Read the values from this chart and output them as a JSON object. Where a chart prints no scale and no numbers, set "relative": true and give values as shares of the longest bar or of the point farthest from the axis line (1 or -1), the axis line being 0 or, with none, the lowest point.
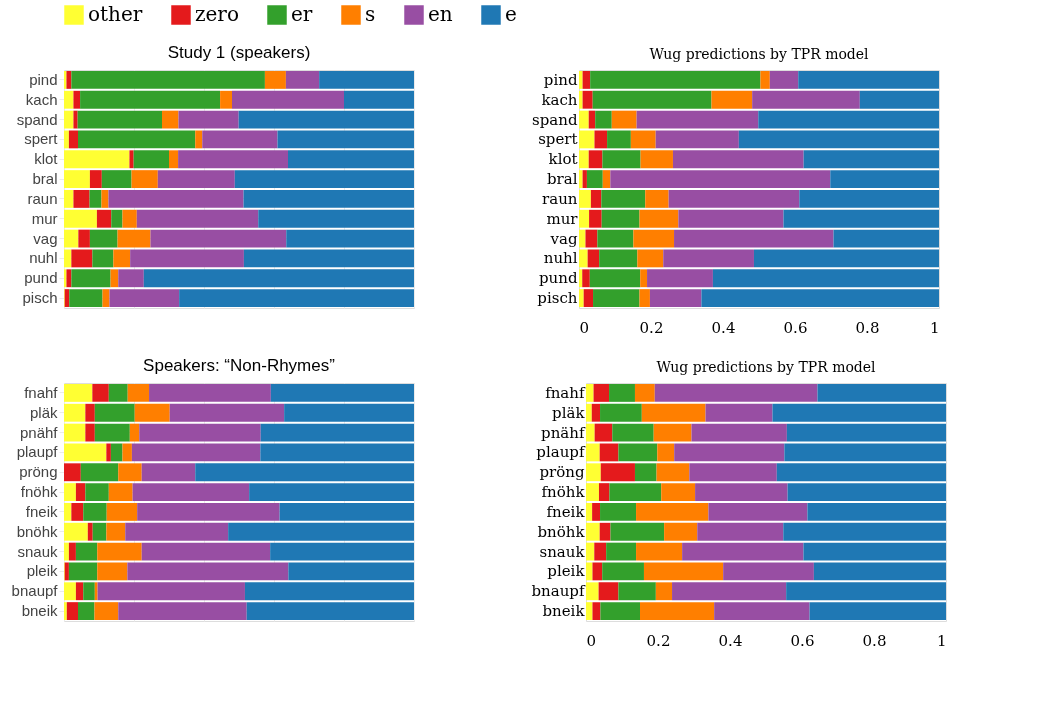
{
  "chart_data": [
    {
      "type": "bar",
      "orientation": "horizontal",
      "stacked": true,
      "relative": true,
      "grid": true,
      "legend": "top",
      "title": "Study 1 (speakers)",
      "categories": [
        "pind",
        "kach",
        "spand",
        "spert",
        "klot",
        "bral",
        "raun",
        "mur",
        "vag",
        "nuhl",
        "pund",
        "pisch"
      ],
      "series": [
        {
          "name": "other",
          "color": "#ffff33",
          "values": [
            0.007,
            0.027,
            0.027,
            0.014,
            0.187,
            0.074,
            0.027,
            0.094,
            0.041,
            0.021,
            0.007,
            0.002
          ]
        },
        {
          "name": "zero",
          "color": "#e41a1c",
          "values": [
            0.014,
            0.019,
            0.012,
            0.026,
            0.012,
            0.034,
            0.046,
            0.041,
            0.033,
            0.06,
            0.014,
            0.013
          ]
        },
        {
          "name": "er",
          "color": "#33a02c",
          "values": [
            0.553,
            0.4,
            0.241,
            0.335,
            0.101,
            0.085,
            0.034,
            0.032,
            0.079,
            0.06,
            0.112,
            0.095
          ]
        },
        {
          "name": "s",
          "color": "#ff7f00",
          "values": [
            0.06,
            0.034,
            0.047,
            0.02,
            0.026,
            0.075,
            0.02,
            0.041,
            0.094,
            0.048,
            0.022,
            0.02
          ]
        },
        {
          "name": "en",
          "color": "#984ea3",
          "values": [
            0.095,
            0.32,
            0.172,
            0.215,
            0.314,
            0.22,
            0.386,
            0.347,
            0.388,
            0.325,
            0.073,
            0.199
          ]
        },
        {
          "name": "e",
          "color": "#1f78b4",
          "values": [
            0.271,
            0.2,
            0.501,
            0.39,
            0.36,
            0.512,
            0.487,
            0.445,
            0.365,
            0.486,
            0.772,
            0.671
          ]
        }
      ]
    },
    {
      "type": "bar",
      "orientation": "horizontal",
      "stacked": true,
      "title": "Wug predictions by TPR model",
      "xlim": [
        0,
        1
      ],
      "xticks": [
        0,
        0.2,
        0.4,
        0.6,
        0.8,
        1
      ],
      "categories": [
        "pind",
        "kach",
        "spand",
        "spert",
        "klot",
        "bral",
        "raun",
        "mur",
        "vag",
        "nuhl",
        "pund",
        "pisch"
      ],
      "series": [
        {
          "color": "#ffff33",
          "values": [
            0.01,
            0.01,
            0.027,
            0.043,
            0.027,
            0.01,
            0.033,
            0.028,
            0.018,
            0.024,
            0.009,
            0.013
          ]
        },
        {
          "color": "#e41a1c",
          "values": [
            0.021,
            0.028,
            0.018,
            0.035,
            0.038,
            0.012,
            0.029,
            0.035,
            0.033,
            0.032,
            0.021,
            0.026
          ]
        },
        {
          "color": "#33a02c",
          "values": [
            0.473,
            0.33,
            0.046,
            0.066,
            0.106,
            0.044,
            0.122,
            0.105,
            0.1,
            0.106,
            0.14,
            0.129
          ]
        },
        {
          "color": "#ff7f00",
          "values": [
            0.026,
            0.113,
            0.069,
            0.069,
            0.09,
            0.021,
            0.065,
            0.108,
            0.113,
            0.072,
            0.019,
            0.029
          ]
        },
        {
          "color": "#984ea3",
          "values": [
            0.079,
            0.299,
            0.338,
            0.231,
            0.363,
            0.611,
            0.363,
            0.292,
            0.443,
            0.252,
            0.183,
            0.143
          ]
        },
        {
          "color": "#1f78b4",
          "values": [
            0.391,
            0.22,
            0.502,
            0.556,
            0.376,
            0.302,
            0.388,
            0.432,
            0.293,
            0.514,
            0.628,
            0.66
          ]
        }
      ]
    },
    {
      "type": "bar",
      "orientation": "horizontal",
      "stacked": true,
      "relative": true,
      "grid": true,
      "title": "Speakers: “Non-Rhymes”",
      "categories": [
        "fnahf",
        "pläk",
        "pnähf",
        "plaupf",
        "pröng",
        "fnöhk",
        "fneik",
        "bnöhk",
        "snauk",
        "pleik",
        "bnaupf",
        "bneik"
      ],
      "series": [
        {
          "color": "#ffff33",
          "values": [
            0.081,
            0.061,
            0.061,
            0.121,
            0.0,
            0.034,
            0.021,
            0.068,
            0.014,
            0.002,
            0.034,
            0.008
          ]
        },
        {
          "color": "#e41a1c",
          "values": [
            0.047,
            0.027,
            0.027,
            0.013,
            0.048,
            0.027,
            0.034,
            0.014,
            0.02,
            0.012,
            0.021,
            0.032
          ]
        },
        {
          "color": "#33a02c",
          "values": [
            0.054,
            0.114,
            0.1,
            0.033,
            0.107,
            0.067,
            0.067,
            0.039,
            0.061,
            0.081,
            0.033,
            0.047
          ]
        },
        {
          "color": "#ff7f00",
          "values": [
            0.061,
            0.1,
            0.027,
            0.027,
            0.067,
            0.068,
            0.087,
            0.054,
            0.127,
            0.086,
            0.008,
            0.068
          ]
        },
        {
          "color": "#984ea3",
          "values": [
            0.348,
            0.327,
            0.347,
            0.367,
            0.153,
            0.333,
            0.407,
            0.294,
            0.367,
            0.46,
            0.421,
            0.367
          ]
        },
        {
          "color": "#1f78b4",
          "values": [
            0.409,
            0.371,
            0.438,
            0.439,
            0.625,
            0.471,
            0.384,
            0.531,
            0.411,
            0.359,
            0.483,
            0.478
          ]
        }
      ]
    },
    {
      "type": "bar",
      "orientation": "horizontal",
      "stacked": true,
      "title": "Wug predictions by TPR model",
      "xlim": [
        0,
        1
      ],
      "xticks": [
        0,
        0.2,
        0.4,
        0.6,
        0.8,
        1
      ],
      "categories": [
        "fnahf",
        "pläk",
        "pnähf",
        "plaupf",
        "pröng",
        "fnöhk",
        "fneik",
        "bnöhk",
        "snauk",
        "pleik",
        "bnaupf",
        "bneik"
      ],
      "series": [
        {
          "color": "#ffff33",
          "values": [
            0.021,
            0.016,
            0.024,
            0.038,
            0.041,
            0.036,
            0.017,
            0.038,
            0.023,
            0.018,
            0.035,
            0.018
          ]
        },
        {
          "color": "#e41a1c",
          "values": [
            0.043,
            0.023,
            0.049,
            0.052,
            0.095,
            0.029,
            0.022,
            0.03,
            0.033,
            0.027,
            0.055,
            0.022
          ]
        },
        {
          "color": "#33a02c",
          "values": [
            0.072,
            0.116,
            0.115,
            0.108,
            0.06,
            0.144,
            0.1,
            0.149,
            0.083,
            0.116,
            0.104,
            0.11
          ]
        },
        {
          "color": "#ff7f00",
          "values": [
            0.055,
            0.177,
            0.105,
            0.047,
            0.091,
            0.094,
            0.201,
            0.092,
            0.128,
            0.22,
            0.045,
            0.206
          ]
        },
        {
          "color": "#984ea3",
          "values": [
            0.452,
            0.186,
            0.265,
            0.306,
            0.243,
            0.257,
            0.275,
            0.239,
            0.337,
            0.252,
            0.317,
            0.265
          ]
        },
        {
          "color": "#1f78b4",
          "values": [
            0.357,
            0.482,
            0.442,
            0.449,
            0.47,
            0.44,
            0.385,
            0.452,
            0.396,
            0.367,
            0.444,
            0.379
          ]
        }
      ]
    }
  ]
}
